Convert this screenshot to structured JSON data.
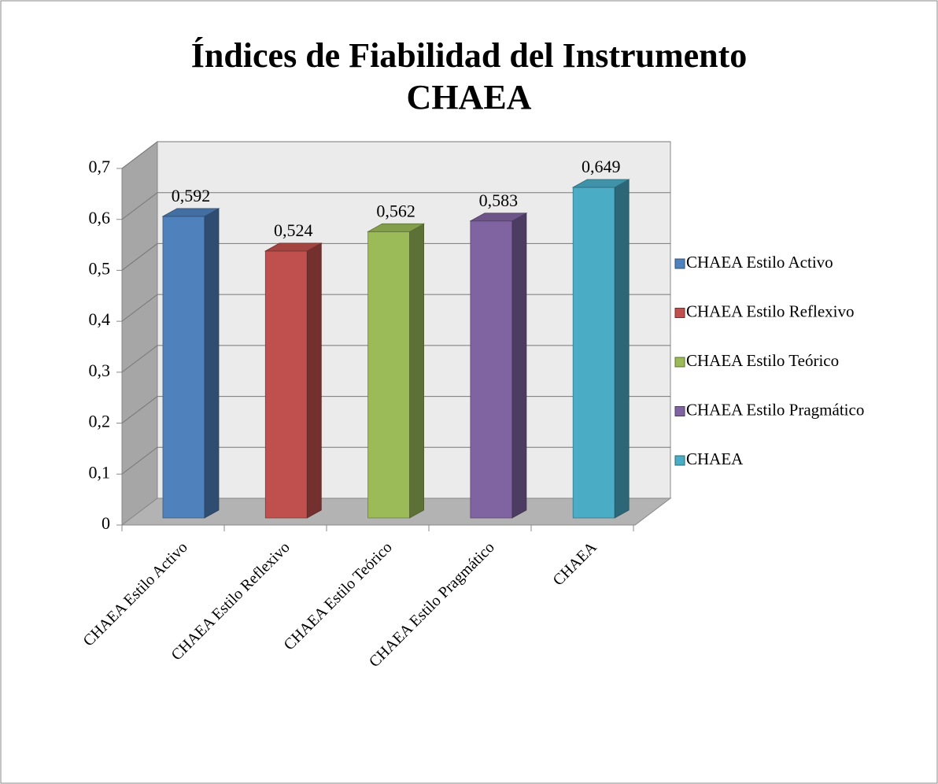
{
  "chart_data": {
    "type": "bar3d",
    "title": [
      "Índices de Fiabilidad del Instrumento",
      "CHAEA"
    ],
    "categories": [
      "CHAEA Estilo Activo",
      "CHAEA Estilo Reflexivo",
      "CHAEA Estilo Teórico",
      "CHAEA Estilo Pragmático",
      "CHAEA"
    ],
    "values": [
      0.592,
      0.524,
      0.562,
      0.583,
      0.649
    ],
    "value_labels": [
      "0,592",
      "0,524",
      "0,562",
      "0,583",
      "0,649"
    ],
    "colors": [
      "#4f81bd",
      "#c0504d",
      "#9bbb59",
      "#8064a2",
      "#4bacc6"
    ],
    "ylim": [
      0,
      0.7
    ],
    "yticks": [
      0,
      {
        "value": 0.1,
        "label": "0,1"
      },
      {
        "value": 0.2,
        "label": "0,2"
      },
      {
        "value": 0.3,
        "label": "0,3"
      },
      {
        "value": 0.4,
        "label": "0,4"
      },
      {
        "value": 0.5,
        "label": "0,5"
      },
      {
        "value": 0.6,
        "label": "0,6"
      },
      {
        "value": 0.7,
        "label": "0,7"
      }
    ],
    "grid": true,
    "legend": "right"
  }
}
